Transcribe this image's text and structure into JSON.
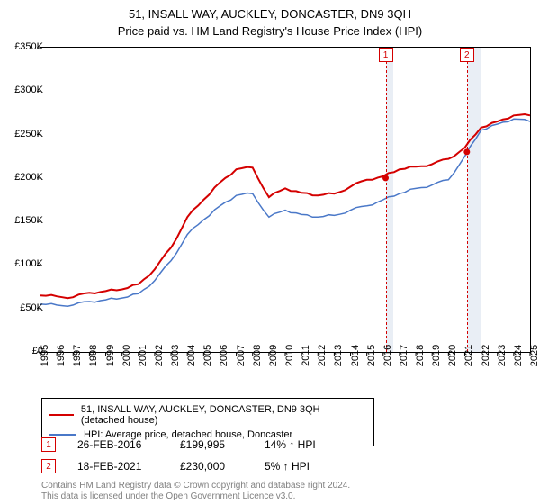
{
  "titles": {
    "line1": "51, INSALL WAY, AUCKLEY, DONCASTER, DN9 3QH",
    "line2": "Price paid vs. HM Land Registry's House Price Index (HPI)"
  },
  "chart": {
    "type": "line",
    "background_color": "#ffffff",
    "border_color": "#000000",
    "ylim": [
      0,
      350000
    ],
    "ytick_step": 50000,
    "ytick_labels": [
      "£0",
      "£50K",
      "£100K",
      "£150K",
      "£200K",
      "£250K",
      "£300K",
      "£350K"
    ],
    "xlim": [
      1995,
      2025
    ],
    "xtick_step": 1,
    "xtick_labels": [
      "1995",
      "1996",
      "1997",
      "1998",
      "1999",
      "2000",
      "2001",
      "2002",
      "2003",
      "2004",
      "2005",
      "2006",
      "2007",
      "2008",
      "2009",
      "2010",
      "2011",
      "2012",
      "2013",
      "2014",
      "2015",
      "2016",
      "2017",
      "2018",
      "2019",
      "2020",
      "2021",
      "2022",
      "2023",
      "2024",
      "2025"
    ],
    "shaded_regions": [
      {
        "from": 2016.15,
        "to": 2016.6,
        "color": "#cfd9e8"
      },
      {
        "from": 2021.13,
        "to": 2022.0,
        "color": "#cfd9e8"
      }
    ],
    "series": [
      {
        "name": "property",
        "label": "51, INSALL WAY, AUCKLEY, DONCASTER, DN9 3QH (detached house)",
        "color": "#d40000",
        "line_width": 2,
        "points": [
          [
            1995,
            65000
          ],
          [
            1996,
            64000
          ],
          [
            1997,
            63000
          ],
          [
            1998,
            68000
          ],
          [
            1999,
            70000
          ],
          [
            2000,
            72000
          ],
          [
            2001,
            78000
          ],
          [
            2002,
            95000
          ],
          [
            2003,
            120000
          ],
          [
            2004,
            155000
          ],
          [
            2005,
            175000
          ],
          [
            2006,
            195000
          ],
          [
            2007,
            210000
          ],
          [
            2008,
            212000
          ],
          [
            2009,
            178000
          ],
          [
            2010,
            188000
          ],
          [
            2011,
            183000
          ],
          [
            2012,
            180000
          ],
          [
            2013,
            182000
          ],
          [
            2014,
            190000
          ],
          [
            2015,
            198000
          ],
          [
            2016,
            202000
          ],
          [
            2017,
            210000
          ],
          [
            2018,
            213000
          ],
          [
            2019,
            216000
          ],
          [
            2020,
            222000
          ],
          [
            2021,
            235000
          ],
          [
            2022,
            258000
          ],
          [
            2023,
            265000
          ],
          [
            2024,
            272000
          ],
          [
            2025,
            272000
          ]
        ]
      },
      {
        "name": "hpi",
        "label": "HPI: Average price, detached house, Doncaster",
        "color": "#4a78c8",
        "line_width": 1.5,
        "points": [
          [
            1995,
            55000
          ],
          [
            1996,
            54000
          ],
          [
            1997,
            54000
          ],
          [
            1998,
            58000
          ],
          [
            1999,
            60000
          ],
          [
            2000,
            62000
          ],
          [
            2001,
            67000
          ],
          [
            2002,
            82000
          ],
          [
            2003,
            105000
          ],
          [
            2004,
            135000
          ],
          [
            2005,
            152000
          ],
          [
            2006,
            168000
          ],
          [
            2007,
            180000
          ],
          [
            2008,
            182000
          ],
          [
            2009,
            155000
          ],
          [
            2010,
            163000
          ],
          [
            2011,
            158000
          ],
          [
            2012,
            155000
          ],
          [
            2013,
            157000
          ],
          [
            2014,
            163000
          ],
          [
            2015,
            168000
          ],
          [
            2016,
            175000
          ],
          [
            2017,
            182000
          ],
          [
            2018,
            188000
          ],
          [
            2019,
            192000
          ],
          [
            2020,
            198000
          ],
          [
            2021,
            225000
          ],
          [
            2022,
            255000
          ],
          [
            2023,
            262000
          ],
          [
            2024,
            268000
          ],
          [
            2025,
            265000
          ]
        ]
      }
    ],
    "sale_markers": [
      {
        "idx": "1",
        "x": 2016.15,
        "y": 199995,
        "dot_color": "#d40000"
      },
      {
        "idx": "2",
        "x": 2021.13,
        "y": 230000,
        "dot_color": "#d40000"
      }
    ]
  },
  "legend": {
    "items": [
      {
        "color": "#d40000",
        "label_ref": "chart.series.0.label"
      },
      {
        "color": "#4a78c8",
        "label_ref": "chart.series.1.label"
      }
    ]
  },
  "sales_table": [
    {
      "idx": "1",
      "date": "26-FEB-2016",
      "price": "£199,995",
      "delta": "14% ↑ HPI"
    },
    {
      "idx": "2",
      "date": "18-FEB-2021",
      "price": "£230,000",
      "delta": "5% ↑ HPI"
    }
  ],
  "footnote": {
    "line1": "Contains HM Land Registry data © Crown copyright and database right 2024.",
    "line2": "This data is licensed under the Open Government Licence v3.0."
  }
}
